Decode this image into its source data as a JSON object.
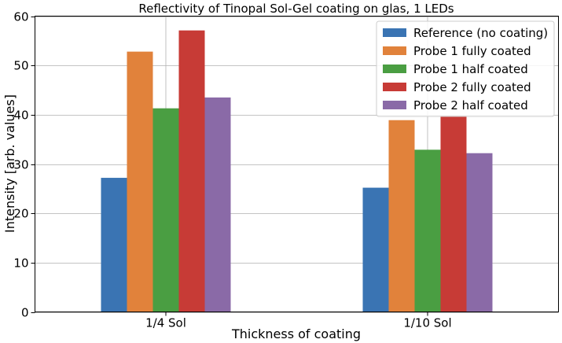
{
  "chart_data": {
    "type": "bar",
    "title": "Reflectivity of Tinopal Sol-Gel coating on glas, 1 LEDs",
    "xlabel": "Thickness of coating",
    "ylabel": "Intensity [arb. values]",
    "categories": [
      "1/4 Sol",
      "1/10 Sol"
    ],
    "series": [
      {
        "name": "Reference (no coating)",
        "color": "#3a74b3",
        "values": [
          27.2,
          25.2
        ]
      },
      {
        "name": "Probe 1 fully coated",
        "color": "#e1823b",
        "values": [
          52.8,
          38.9
        ]
      },
      {
        "name": "Probe 1 half coated",
        "color": "#4a9e42",
        "values": [
          41.3,
          32.9
        ]
      },
      {
        "name": "Probe 2 fully coated",
        "color": "#c73b36",
        "values": [
          57.1,
          39.8
        ]
      },
      {
        "name": "Probe 2 half coated",
        "color": "#8a6aa7",
        "values": [
          43.5,
          32.2
        ]
      }
    ],
    "ylim": [
      0,
      60
    ],
    "yticks": [
      0,
      10,
      20,
      30,
      40,
      50,
      60
    ],
    "grid": true,
    "legend_position": "top-right"
  }
}
